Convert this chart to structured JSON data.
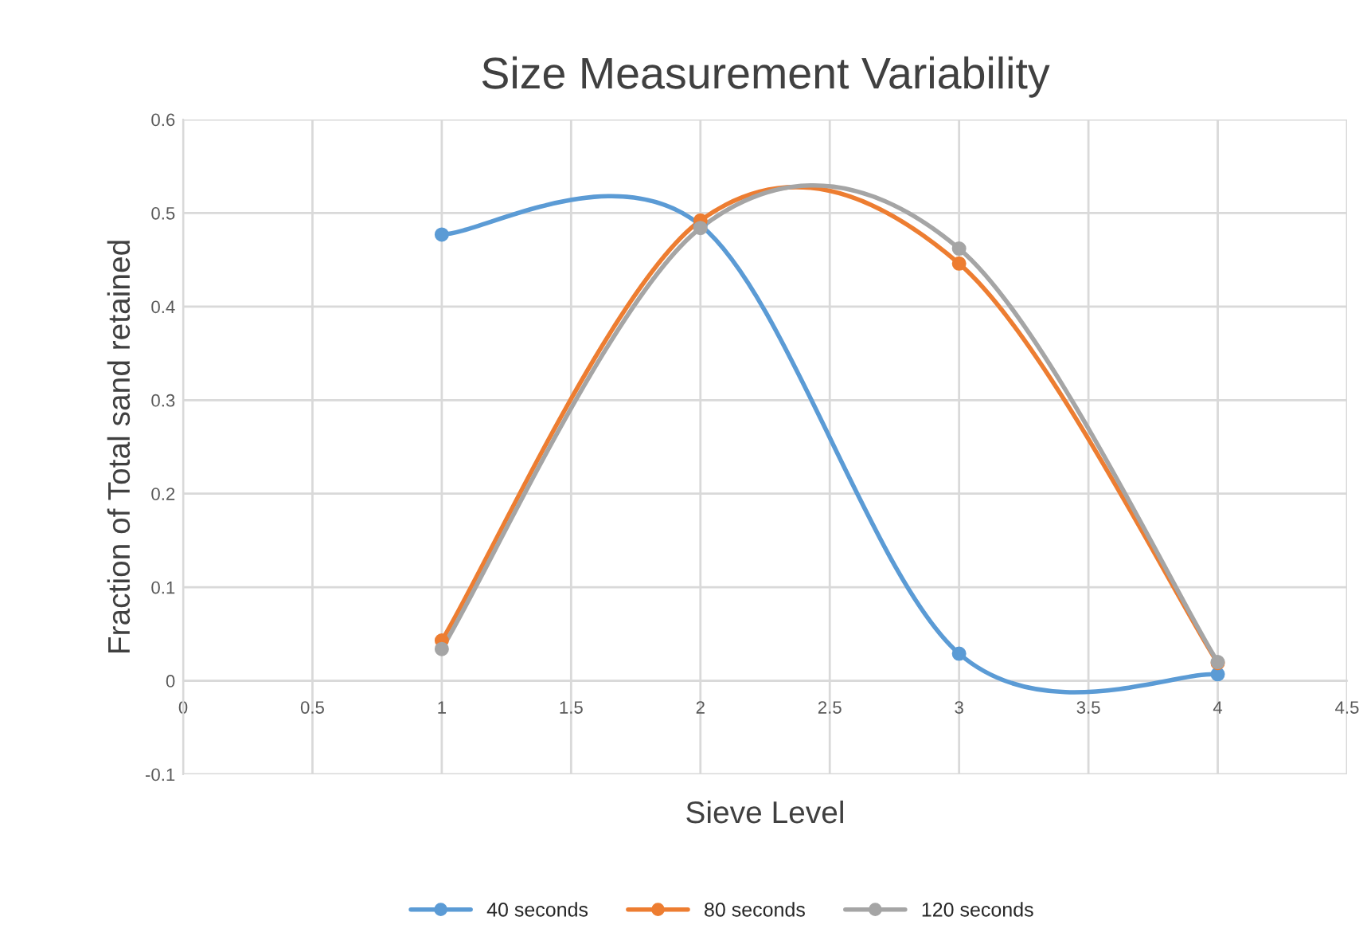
{
  "chart_data": {
    "type": "line",
    "title": "Size Measurement Variability",
    "xlabel": "Sieve Level",
    "ylabel": "Fraction of Total sand retained",
    "x": [
      1,
      2,
      3,
      4
    ],
    "series": [
      {
        "name": "40 seconds",
        "color": "#5b9bd5",
        "values": [
          0.477,
          0.487,
          0.029,
          0.007
        ]
      },
      {
        "name": "80 seconds",
        "color": "#ed7d31",
        "values": [
          0.043,
          0.492,
          0.446,
          0.019
        ]
      },
      {
        "name": "120 seconds",
        "color": "#a5a5a5",
        "values": [
          0.034,
          0.484,
          0.462,
          0.02
        ]
      }
    ],
    "xlim": [
      0,
      4.5
    ],
    "xticks": [
      0,
      0.5,
      1,
      1.5,
      2,
      2.5,
      3,
      3.5,
      4,
      4.5
    ],
    "ylim": [
      -0.1,
      0.6
    ],
    "yticks": [
      -0.1,
      0,
      0.1,
      0.2,
      0.3,
      0.4,
      0.5,
      0.6
    ],
    "grid": true,
    "legend": "bottom",
    "marker": "circle",
    "line_style": "solid"
  }
}
